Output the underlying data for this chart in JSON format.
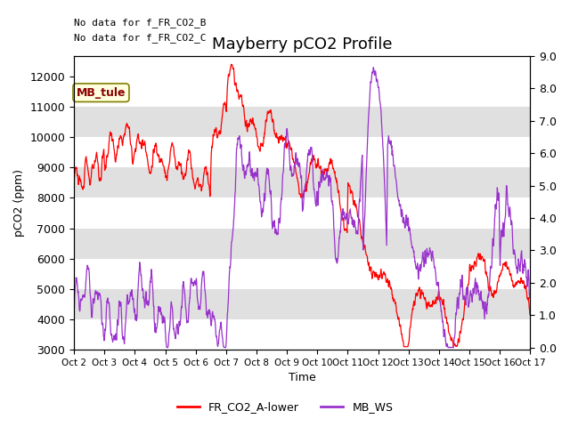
{
  "title": "Mayberry pCO2 Profile",
  "xlabel": "Time",
  "ylabel_left": "pCO2 (ppm)",
  "ylabel_right": "",
  "ylim_left": [
    3000,
    12667
  ],
  "ylim_right": [
    -0.067,
    9.0
  ],
  "yticks_left": [
    3000,
    4000,
    5000,
    6000,
    7000,
    8000,
    9000,
    10000,
    11000,
    12000
  ],
  "yticks_right": [
    0.0,
    1.0,
    2.0,
    3.0,
    4.0,
    5.0,
    6.0,
    7.0,
    8.0,
    9.0
  ],
  "color_red": "#ff0000",
  "color_purple": "#9932cc",
  "annotation1": "No data for f_FR_CO2_B",
  "annotation2": "No data for f_FR_CO2_C",
  "mb_tule_label": "MB_tule",
  "legend_red": "FR_CO2_A-lower",
  "legend_purple": "MB_WS",
  "band_color": "#e0e0e0",
  "bg_color": "#ffffff",
  "title_fontsize": 13,
  "axis_fontsize": 9
}
